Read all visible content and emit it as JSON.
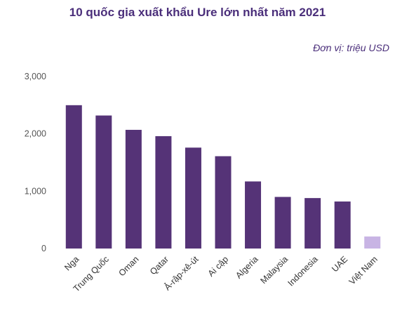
{
  "chart_data": {
    "type": "bar",
    "title": "10 quốc gia xuất khẩu Ure lớn nhất năm 2021",
    "unit_label": "Đơn vị: triệu USD",
    "categories": [
      "Nga",
      "Trung Quốc",
      "Oman",
      "Qatar",
      "Ả-rập-xê-út",
      "Ai cập",
      "Algeria",
      "Malaysia",
      "Indonesia",
      "UAE",
      "Việt Nam"
    ],
    "values": [
      2500,
      2320,
      2070,
      1960,
      1760,
      1610,
      1170,
      900,
      880,
      820,
      210
    ],
    "yticks": [
      "0",
      "1,000",
      "2,000",
      "3,000"
    ],
    "ytick_values": [
      0,
      1000,
      2000,
      3000
    ],
    "ylim": [
      0,
      3000
    ],
    "xlabel": "",
    "ylabel": "",
    "grid": false,
    "colors": {
      "bar": "#553377",
      "highlight": "#c8b4e4",
      "highlight_category": "Việt Nam"
    }
  }
}
